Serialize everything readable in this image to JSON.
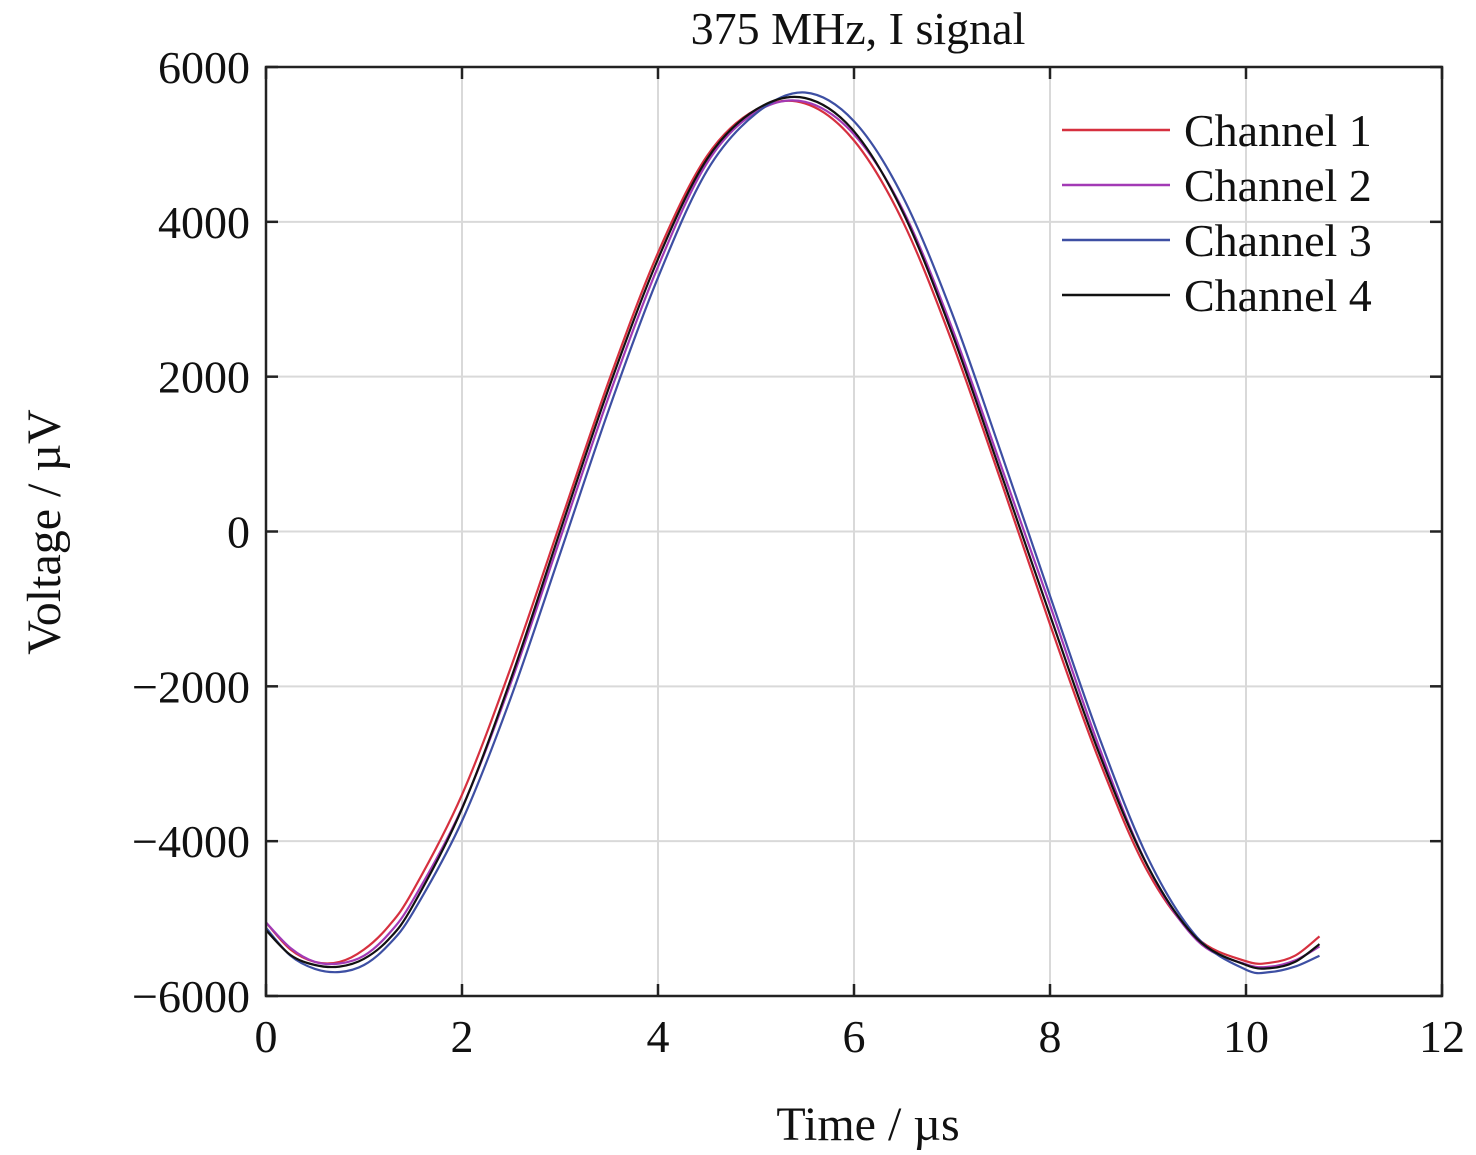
{
  "chart_data": {
    "type": "line",
    "title": "375 MHz, I signal",
    "xlabel": "Time / µs",
    "ylabel": "Voltage / µV",
    "xlim": [
      0,
      12
    ],
    "ylim": [
      -6000,
      6000
    ],
    "xticks": [
      0,
      2,
      4,
      6,
      8,
      10,
      12
    ],
    "yticks": [
      6000,
      4000,
      2000,
      0,
      -2000,
      -4000,
      -6000
    ],
    "xtick_labels": [
      "0",
      "2",
      "4",
      "6",
      "8",
      "10",
      "12"
    ],
    "ytick_labels": [
      "6000",
      "4000",
      "2000",
      "0",
      "−2000",
      "−4000",
      "−6000"
    ],
    "grid": true,
    "legend_position": "top-right",
    "x": [
      0,
      0.25,
      0.5,
      0.75,
      1.0,
      1.25,
      1.5,
      2.0,
      2.5,
      3.0,
      3.5,
      4.0,
      4.5,
      5.0,
      5.5,
      6.0,
      6.5,
      7.0,
      7.5,
      8.0,
      8.5,
      9.0,
      9.5,
      10.0,
      10.25,
      10.5,
      10.75
    ],
    "series": [
      {
        "name": "Channel 1",
        "color": "#d6303f",
        "values": [
          -5050,
          -5400,
          -5560,
          -5560,
          -5400,
          -5100,
          -4640,
          -3400,
          -1750,
          100,
          1950,
          3600,
          4850,
          5450,
          5530,
          5050,
          4000,
          2450,
          650,
          -1200,
          -2950,
          -4400,
          -5250,
          -5550,
          -5570,
          -5480,
          -5230
        ]
      },
      {
        "name": "Channel 2",
        "color": "#a23ab5",
        "values": [
          -5050,
          -5380,
          -5560,
          -5580,
          -5480,
          -5200,
          -4760,
          -3570,
          -1950,
          -100,
          1750,
          3420,
          4760,
          5420,
          5550,
          5130,
          4150,
          2630,
          850,
          -950,
          -2780,
          -4330,
          -5280,
          -5590,
          -5620,
          -5540,
          -5360
        ]
      },
      {
        "name": "Channel 3",
        "color": "#3d4fa3",
        "values": [
          -5120,
          -5480,
          -5650,
          -5690,
          -5600,
          -5340,
          -4920,
          -3740,
          -2140,
          -290,
          1580,
          3280,
          4660,
          5400,
          5670,
          5300,
          4320,
          2820,
          1020,
          -830,
          -2650,
          -4220,
          -5240,
          -5660,
          -5690,
          -5620,
          -5480
        ]
      },
      {
        "name": "Channel 4",
        "color": "#111111",
        "values": [
          -5150,
          -5470,
          -5600,
          -5620,
          -5520,
          -5270,
          -4830,
          -3580,
          -1900,
          0,
          1860,
          3520,
          4810,
          5450,
          5600,
          5170,
          4120,
          2560,
          750,
          -1080,
          -2860,
          -4330,
          -5260,
          -5600,
          -5640,
          -5560,
          -5330
        ]
      }
    ]
  }
}
